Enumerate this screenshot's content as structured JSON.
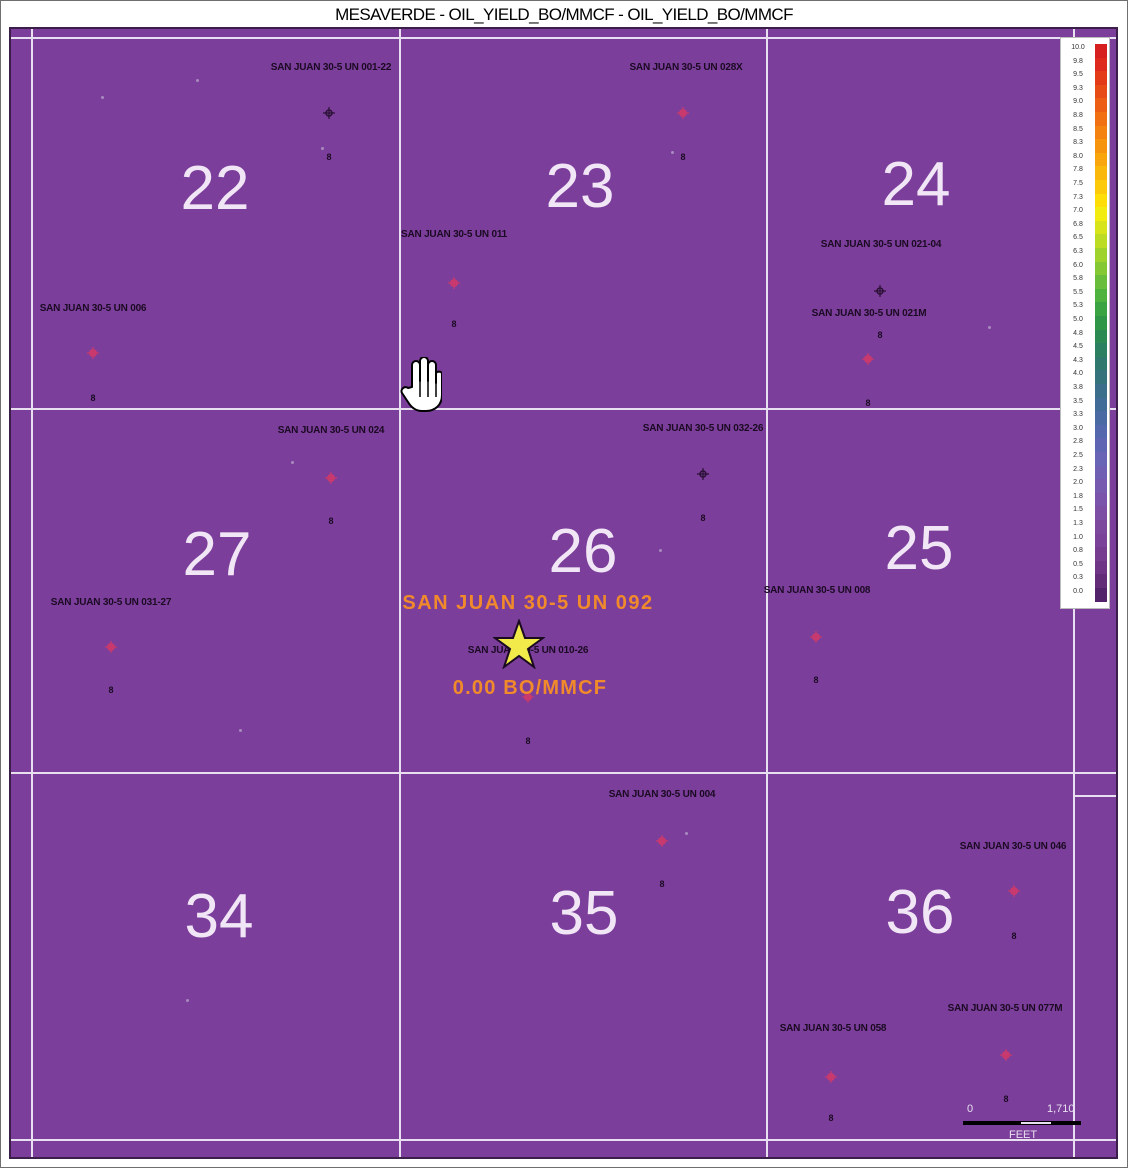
{
  "title": "MESAVERDE - OIL_YIELD_BO/MMCF - OIL_YIELD_BO/MMCF",
  "map": {
    "background_color": "#7c3e9b",
    "sections": [
      {
        "label": "22",
        "row": 0,
        "col": 0
      },
      {
        "label": "23",
        "row": 0,
        "col": 1
      },
      {
        "label": "24",
        "row": 0,
        "col": 2
      },
      {
        "label": "27",
        "row": 1,
        "col": 0
      },
      {
        "label": "26",
        "row": 1,
        "col": 1
      },
      {
        "label": "25",
        "row": 1,
        "col": 2
      },
      {
        "label": "34",
        "row": 2,
        "col": 0
      },
      {
        "label": "35",
        "row": 2,
        "col": 1
      },
      {
        "label": "36",
        "row": 2,
        "col": 2
      }
    ],
    "wells": [
      {
        "label": "SAN JUAN 30-5 UN 001-22",
        "symbol": "gas-well-icon"
      },
      {
        "label": "SAN JUAN 30-5 UN 028X",
        "symbol": "red-well-icon"
      },
      {
        "label": "SAN JUAN 30-5 UN 011",
        "symbol": "red-well-icon"
      },
      {
        "label": "SAN JUAN 30-5 UN 021-04",
        "symbol": "gas-well-icon"
      },
      {
        "label": "SAN JUAN 30-5 UN 006",
        "symbol": "red-well-icon"
      },
      {
        "label": "SAN JUAN 30-5 UN 021M",
        "symbol": "red-well-icon"
      },
      {
        "label": "SAN JUAN 30-5 UN 024",
        "symbol": "red-well-icon"
      },
      {
        "label": "SAN JUAN 30-5 UN 032-26",
        "symbol": "gas-well-icon"
      },
      {
        "label": "SAN JUAN 30-5 UN 031-27",
        "symbol": "red-well-icon"
      },
      {
        "label": "SAN JUAN 30-5 UN 008",
        "symbol": "red-well-icon"
      },
      {
        "label": "SAN JUAN 30-5 UN 010-26",
        "symbol": "red-well-icon"
      },
      {
        "label": "SAN JUAN 30-5 UN 004",
        "symbol": "red-well-icon"
      },
      {
        "label": "SAN JUAN 30-5 UN 046",
        "symbol": "red-well-icon"
      },
      {
        "label": "SAN JUAN 30-5 UN 077M",
        "symbol": "red-well-icon"
      },
      {
        "label": "SAN JUAN 30-5 UN 058",
        "symbol": "red-well-icon"
      }
    ],
    "selected_well": {
      "name": "SAN JUAN 30-5 UN  092",
      "value": "0.00 BO/MMCF",
      "marker": "star-icon",
      "marker_color": "#f2e94a"
    },
    "cursor": "hand-cursor-icon"
  },
  "legend": {
    "ticks": [
      "10.0",
      "9.8",
      "9.5",
      "9.3",
      "9.0",
      "8.8",
      "8.5",
      "8.3",
      "8.0",
      "7.8",
      "7.5",
      "7.3",
      "7.0",
      "6.8",
      "6.5",
      "6.3",
      "6.0",
      "5.8",
      "5.5",
      "5.3",
      "5.0",
      "4.8",
      "4.5",
      "4.3",
      "4.0",
      "3.8",
      "3.5",
      "3.3",
      "3.0",
      "2.8",
      "2.5",
      "2.3",
      "2.0",
      "1.8",
      "1.5",
      "1.3",
      "1.0",
      "0.8",
      "0.5",
      "0.3",
      "0.0"
    ],
    "colors": [
      "#d62020",
      "#dd2a1c",
      "#e33a18",
      "#e84c16",
      "#ec5e14",
      "#f07012",
      "#f48210",
      "#f6940e",
      "#f8a60c",
      "#fab80a",
      "#fcca08",
      "#fede06",
      "#f2ec10",
      "#d8e41a",
      "#bcdc24",
      "#a0d22c",
      "#84c834",
      "#68be3a",
      "#4eb23e",
      "#3aa442",
      "#2e9646",
      "#2a8a52",
      "#2a8060",
      "#2e786e",
      "#34727c",
      "#3a6e8a",
      "#426c98",
      "#4a6aa4",
      "#5468ae",
      "#5e66b4",
      "#6864b6",
      "#7060b4",
      "#765ab0",
      "#7a54aa",
      "#7c4ea4",
      "#7c489e",
      "#7a4298",
      "#763c90",
      "#6e3486",
      "#622c78",
      "#52226a"
    ]
  },
  "scale_bar": {
    "start_label": "0",
    "end_label": "1,710",
    "unit": "FEET"
  }
}
